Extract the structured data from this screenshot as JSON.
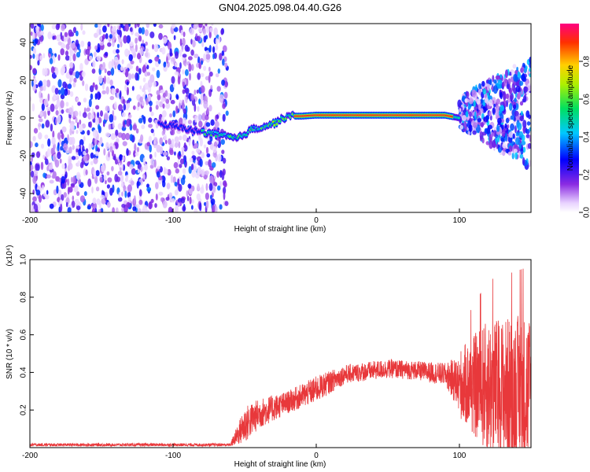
{
  "chart_data": [
    {
      "type": "heatmap",
      "title": "GN04.2025.098.04.40.G26",
      "xlabel": "Height of straight line (km)",
      "ylabel": "Frequency (Hz)",
      "xlim": [
        -200,
        150
      ],
      "ylim": [
        -50,
        50
      ],
      "xticks": [
        "-200",
        "-100",
        "0",
        "100"
      ],
      "yticks": [
        "-40",
        "-20",
        "0",
        "20",
        "40"
      ],
      "colorbar": {
        "label": "Normalized spectral amplitude",
        "range": [
          0,
          1
        ],
        "ticks": [
          "0.0",
          "0.2",
          "0.4",
          "0.6",
          "0.8"
        ]
      },
      "ridge": {
        "description_points": [
          {
            "x": -110,
            "y": -3
          },
          {
            "x": -75,
            "y": -8
          },
          {
            "x": -55,
            "y": -11
          },
          {
            "x": -45,
            "y": -6
          },
          {
            "x": -30,
            "y": -3
          },
          {
            "x": -20,
            "y": 1
          },
          {
            "x": -10,
            "y": 1
          },
          {
            "x": 0,
            "y": 1.5
          },
          {
            "x": 30,
            "y": 1.5
          },
          {
            "x": 60,
            "y": 1.5
          },
          {
            "x": 90,
            "y": 1.5
          },
          {
            "x": 100,
            "y": 0
          }
        ]
      },
      "noise_regions": [
        {
          "x": [
            -200,
            -62
          ],
          "y": [
            -50,
            50
          ],
          "level": 0.15
        },
        {
          "x": [
            100,
            150
          ],
          "y": [
            -25,
            35
          ],
          "level": 0.2
        }
      ]
    },
    {
      "type": "line",
      "xlabel": "Height of straight line (km)",
      "ylabel": "SNR (10 * v/v)",
      "y_scale_note": "(x10⁴)",
      "xlim": [
        -200,
        150
      ],
      "ylim": [
        0,
        1.0
      ],
      "xticks": [
        "-200",
        "-100",
        "0",
        "100"
      ],
      "yticks": [
        "0.2",
        "0.4",
        "0.6",
        "0.8",
        "1.0"
      ],
      "series": [
        {
          "color": "#e8383b",
          "envelope": [
            {
              "x": -200,
              "mean": 0.015,
              "spread": 0.008
            },
            {
              "x": -60,
              "mean": 0.015,
              "spread": 0.008
            },
            {
              "x": -50,
              "mean": 0.12,
              "spread": 0.1
            },
            {
              "x": -40,
              "mean": 0.18,
              "spread": 0.08
            },
            {
              "x": -20,
              "mean": 0.24,
              "spread": 0.06
            },
            {
              "x": 0,
              "mean": 0.31,
              "spread": 0.07
            },
            {
              "x": 20,
              "mean": 0.39,
              "spread": 0.05
            },
            {
              "x": 50,
              "mean": 0.42,
              "spread": 0.05
            },
            {
              "x": 70,
              "mean": 0.41,
              "spread": 0.05
            },
            {
              "x": 90,
              "mean": 0.39,
              "spread": 0.06
            },
            {
              "x": 100,
              "mean": 0.34,
              "spread": 0.15
            },
            {
              "x": 120,
              "mean": 0.32,
              "spread": 0.3
            },
            {
              "x": 150,
              "mean": 0.3,
              "spread": 0.35
            }
          ]
        }
      ]
    }
  ]
}
